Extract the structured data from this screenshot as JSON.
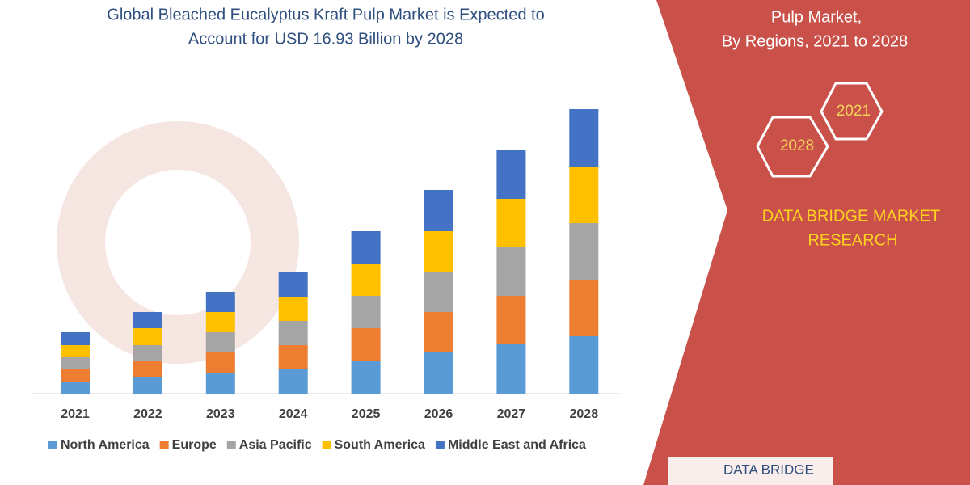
{
  "chart_data": {
    "type": "stacked-bar",
    "title": [
      "Global Bleached Eucalyptus Kraft Pulp Market is Expected to",
      "Account for USD 16.93 Billion by 2028"
    ],
    "categories": [
      "2021",
      "2022",
      "2023",
      "2024",
      "2025",
      "2026",
      "2027",
      "2028"
    ],
    "series": [
      {
        "name": "North America",
        "color": "#5b9bd5",
        "values": [
          15,
          20,
          26,
          30,
          41,
          51,
          61,
          71
        ]
      },
      {
        "name": "Europe",
        "color": "#ed7d31",
        "values": [
          15,
          20,
          25,
          30,
          40,
          50,
          60,
          70
        ]
      },
      {
        "name": "Asia Pacific",
        "color": "#a5a5a5",
        "values": [
          15,
          20,
          25,
          30,
          40,
          50,
          60,
          70
        ]
      },
      {
        "name": "South America",
        "color": "#ffc000",
        "values": [
          15,
          21,
          25,
          30,
          40,
          50,
          60,
          70
        ]
      },
      {
        "name": "Middle East and Africa",
        "color": "#4472c4",
        "values": [
          16,
          20,
          25,
          31,
          40,
          51,
          60,
          71
        ]
      }
    ],
    "legend": "bottom"
  },
  "panel": {
    "title": [
      "Pulp Market,",
      "By Regions, 2021 to 2028"
    ],
    "hexagons": [
      "2021",
      "2028"
    ],
    "brand": [
      "DATA BRIDGE MARKET",
      "RESEARCH"
    ],
    "logo": "DATA BRIDGE"
  }
}
